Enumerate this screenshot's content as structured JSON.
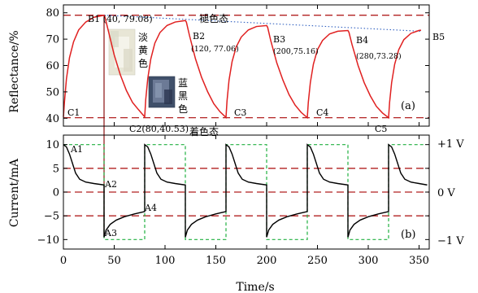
{
  "chart_data": [
    {
      "type": "line",
      "panel_label": "(a)",
      "ylabel": "Reflectance/%",
      "ylim": [
        37,
        83
      ],
      "yticks": [
        40,
        50,
        60,
        70,
        80
      ],
      "xlim": [
        0,
        360
      ],
      "reference_lines": [
        {
          "y": 79.08,
          "style": "dashed",
          "color": "#b22222",
          "label": "褪色态"
        },
        {
          "y": 40.2,
          "style": "dashed",
          "color": "#b22222",
          "label": "着色态"
        }
      ],
      "fade_trend": {
        "style": "dotted",
        "color": "#3060c0",
        "points": [
          [
            40,
            79.08
          ],
          [
            352,
            73.0
          ]
        ]
      },
      "series": [
        {
          "color": "#e02020",
          "points": [
            [
              0,
              40.5
            ],
            [
              1,
              46
            ],
            [
              3,
              55
            ],
            [
              6,
              63
            ],
            [
              10,
              69
            ],
            [
              15,
              73.5
            ],
            [
              22,
              76.5
            ],
            [
              30,
              78.3
            ],
            [
              40,
              79.08
            ],
            [
              41,
              78.2
            ],
            [
              44,
              73.5
            ],
            [
              50,
              64
            ],
            [
              56,
              56.5
            ],
            [
              62,
              50.5
            ],
            [
              68,
              46
            ],
            [
              74,
              43.2
            ],
            [
              80,
              40.53
            ],
            [
              81,
              47
            ],
            [
              83,
              55
            ],
            [
              86,
              62.5
            ],
            [
              90,
              68.5
            ],
            [
              95,
              72.5
            ],
            [
              102,
              75.2
            ],
            [
              110,
              76.5
            ],
            [
              120,
              77.06
            ],
            [
              121,
              76.5
            ],
            [
              124,
              71.5
            ],
            [
              130,
              62.5
            ],
            [
              136,
              55.5
            ],
            [
              142,
              50
            ],
            [
              148,
              45.5
            ],
            [
              154,
              42.5
            ],
            [
              160,
              40.3
            ],
            [
              161,
              46.5
            ],
            [
              163,
              54.5
            ],
            [
              166,
              61.5
            ],
            [
              170,
              67
            ],
            [
              175,
              70.8
            ],
            [
              182,
              73.5
            ],
            [
              190,
              74.8
            ],
            [
              200,
              75.16
            ],
            [
              201,
              74.5
            ],
            [
              204,
              69.5
            ],
            [
              210,
              61
            ],
            [
              216,
              54.5
            ],
            [
              222,
              49
            ],
            [
              228,
              45
            ],
            [
              234,
              42.2
            ],
            [
              240,
              40.2
            ],
            [
              241,
              46
            ],
            [
              243,
              53.5
            ],
            [
              246,
              60.5
            ],
            [
              250,
              66
            ],
            [
              255,
              69.5
            ],
            [
              262,
              72
            ],
            [
              270,
              73
            ],
            [
              280,
              73.28
            ],
            [
              281,
              72.6
            ],
            [
              284,
              68
            ],
            [
              290,
              60
            ],
            [
              296,
              53.5
            ],
            [
              302,
              48.5
            ],
            [
              308,
              44.5
            ],
            [
              314,
              42
            ],
            [
              320,
              40.2
            ],
            [
              321,
              46
            ],
            [
              323,
              53.5
            ],
            [
              326,
              60.5
            ],
            [
              330,
              66
            ],
            [
              335,
              69.8
            ],
            [
              342,
              72.2
            ],
            [
              350,
              73.3
            ],
            [
              352,
              73.4
            ]
          ]
        }
      ],
      "annotations": [
        {
          "text": "B1 (40, 79.08)",
          "x": 40,
          "y": 79.08
        },
        {
          "text": "B2",
          "x": 120,
          "y": 77.06
        },
        {
          "text": "(120, 77.06)",
          "x": 120,
          "y": 77.06
        },
        {
          "text": "B3",
          "x": 200,
          "y": 75.16
        },
        {
          "text": "(200,75.16)",
          "x": 200,
          "y": 75.16
        },
        {
          "text": "B4",
          "x": 280,
          "y": 73.28
        },
        {
          "text": "(280,73.28)",
          "x": 280,
          "y": 73.28
        },
        {
          "text": "B5",
          "x": 352,
          "y": 73.4
        },
        {
          "text": "C1",
          "x": 0,
          "y": 40.5
        },
        {
          "text": "C2(80,40.53)",
          "x": 80,
          "y": 40.53
        },
        {
          "text": "C3",
          "x": 160,
          "y": 40.3
        },
        {
          "text": "C4",
          "x": 240,
          "y": 40.2
        },
        {
          "text": "C5",
          "x": 320,
          "y": 40.2
        }
      ],
      "photo_labels": {
        "faded": [
          "淡",
          "黄",
          "色"
        ],
        "colored": [
          "蓝",
          "黑",
          "色"
        ]
      }
    },
    {
      "type": "line",
      "panel_label": "(b)",
      "ylabel": "Current/mA",
      "xlabel": "Time/s",
      "ylim": [
        -12,
        12
      ],
      "yticks": [
        -10,
        -5,
        0,
        5,
        10
      ],
      "xlim": [
        0,
        360
      ],
      "xticks": [
        0,
        50,
        100,
        150,
        200,
        250,
        300,
        350
      ],
      "reference_lines": [
        {
          "y": 5,
          "style": "dashed",
          "color": "#b22222"
        },
        {
          "y": 0,
          "style": "dashed",
          "color": "#b22222"
        },
        {
          "y": -5,
          "style": "dashed",
          "color": "#b22222"
        }
      ],
      "right_labels": [
        {
          "y": 10,
          "text": "+1 V"
        },
        {
          "y": 0,
          "text": "0 V"
        },
        {
          "y": -10,
          "text": "−1 V"
        }
      ],
      "voltage_series": {
        "color": "#20b040",
        "style": "dashed",
        "points": [
          [
            0,
            10
          ],
          [
            40,
            10
          ],
          [
            40,
            -10
          ],
          [
            80,
            -10
          ],
          [
            80,
            10
          ],
          [
            120,
            10
          ],
          [
            120,
            -10
          ],
          [
            160,
            -10
          ],
          [
            160,
            10
          ],
          [
            200,
            10
          ],
          [
            200,
            -10
          ],
          [
            240,
            -10
          ],
          [
            240,
            10
          ],
          [
            280,
            10
          ],
          [
            280,
            -10
          ],
          [
            320,
            -10
          ],
          [
            320,
            10
          ],
          [
            355,
            10
          ]
        ]
      },
      "series": [
        {
          "color": "#000000",
          "points": [
            [
              0,
              10
            ],
            [
              3,
              9.5
            ],
            [
              6,
              8
            ],
            [
              9,
              6
            ],
            [
              12,
              4
            ],
            [
              16,
              2.7
            ],
            [
              22,
              2.1
            ],
            [
              30,
              1.8
            ],
            [
              40,
              1.5
            ],
            [
              40,
              -9.5
            ],
            [
              42,
              -8
            ],
            [
              46,
              -6.8
            ],
            [
              52,
              -5.9
            ],
            [
              60,
              -5.2
            ],
            [
              70,
              -4.6
            ],
            [
              80,
              -4.1
            ],
            [
              80,
              10
            ],
            [
              83,
              9.5
            ],
            [
              86,
              8
            ],
            [
              89,
              6
            ],
            [
              92,
              4
            ],
            [
              96,
              2.7
            ],
            [
              102,
              2.1
            ],
            [
              110,
              1.8
            ],
            [
              120,
              1.5
            ],
            [
              120,
              -9.5
            ],
            [
              122,
              -8
            ],
            [
              126,
              -6.8
            ],
            [
              132,
              -5.9
            ],
            [
              140,
              -5.2
            ],
            [
              150,
              -4.6
            ],
            [
              160,
              -4.1
            ],
            [
              160,
              10
            ],
            [
              163,
              9.5
            ],
            [
              166,
              8
            ],
            [
              169,
              6
            ],
            [
              172,
              4
            ],
            [
              176,
              2.7
            ],
            [
              182,
              2.1
            ],
            [
              190,
              1.8
            ],
            [
              200,
              1.5
            ],
            [
              200,
              -9.5
            ],
            [
              202,
              -8
            ],
            [
              206,
              -6.8
            ],
            [
              212,
              -5.9
            ],
            [
              220,
              -5.2
            ],
            [
              230,
              -4.6
            ],
            [
              240,
              -4.1
            ],
            [
              240,
              10
            ],
            [
              243,
              9.5
            ],
            [
              246,
              8
            ],
            [
              249,
              6
            ],
            [
              252,
              4
            ],
            [
              256,
              2.7
            ],
            [
              262,
              2.1
            ],
            [
              270,
              1.8
            ],
            [
              280,
              1.5
            ],
            [
              280,
              -9.5
            ],
            [
              282,
              -8
            ],
            [
              286,
              -6.8
            ],
            [
              292,
              -5.9
            ],
            [
              300,
              -5.2
            ],
            [
              310,
              -4.6
            ],
            [
              320,
              -4.1
            ],
            [
              320,
              10
            ],
            [
              323,
              9.5
            ],
            [
              326,
              8
            ],
            [
              329,
              6
            ],
            [
              332,
              4
            ],
            [
              336,
              2.7
            ],
            [
              342,
              2.1
            ],
            [
              350,
              1.8
            ],
            [
              358,
              1.5
            ]
          ]
        }
      ],
      "annotations": [
        {
          "text": "A1",
          "x": 0,
          "y": 10
        },
        {
          "text": "A2",
          "x": 40,
          "y": 1.5
        },
        {
          "text": "A3",
          "x": 40,
          "y": -9.5
        },
        {
          "text": "A4",
          "x": 80,
          "y": -4.1
        }
      ]
    }
  ]
}
